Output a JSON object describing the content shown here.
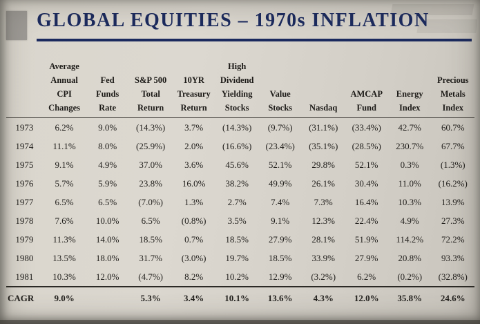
{
  "page": {
    "title": "GLOBAL EQUITIES – 1970s INFLATION"
  },
  "table": {
    "columns": [
      "",
      "Average\nAnnual\nCPI\nChanges",
      "Fed\nFunds\nRate",
      "S&P 500\nTotal\nReturn",
      "10YR\nTreasury\nReturn",
      "High\nDividend\nYielding\nStocks",
      "Value\nStocks",
      "Nasdaq",
      "AMCAP\nFund",
      "Energy\nIndex",
      "Precious\nMetals\nIndex"
    ],
    "rows": [
      {
        "label": "1973",
        "values": [
          "6.2%",
          "9.0%",
          "(14.3%)",
          "3.7%",
          "(14.3%)",
          "(9.7%)",
          "(31.1%)",
          "(33.4%)",
          "42.7%",
          "60.7%"
        ]
      },
      {
        "label": "1974",
        "values": [
          "11.1%",
          "8.0%",
          "(25.9%)",
          "2.0%",
          "(16.6%)",
          "(23.4%)",
          "(35.1%)",
          "(28.5%)",
          "230.7%",
          "67.7%"
        ]
      },
      {
        "label": "1975",
        "values": [
          "9.1%",
          "4.9%",
          "37.0%",
          "3.6%",
          "45.6%",
          "52.1%",
          "29.8%",
          "52.1%",
          "0.3%",
          "(1.3%)"
        ]
      },
      {
        "label": "1976",
        "values": [
          "5.7%",
          "5.9%",
          "23.8%",
          "16.0%",
          "38.2%",
          "49.9%",
          "26.1%",
          "30.4%",
          "11.0%",
          "(16.2%)"
        ]
      },
      {
        "label": "1977",
        "values": [
          "6.5%",
          "6.5%",
          "(7.0%)",
          "1.3%",
          "2.7%",
          "7.4%",
          "7.3%",
          "16.4%",
          "10.3%",
          "13.9%"
        ]
      },
      {
        "label": "1978",
        "values": [
          "7.6%",
          "10.0%",
          "6.5%",
          "(0.8%)",
          "3.5%",
          "9.1%",
          "12.3%",
          "22.4%",
          "4.9%",
          "27.3%"
        ]
      },
      {
        "label": "1979",
        "values": [
          "11.3%",
          "14.0%",
          "18.5%",
          "0.7%",
          "18.5%",
          "27.9%",
          "28.1%",
          "51.9%",
          "114.2%",
          "72.2%"
        ]
      },
      {
        "label": "1980",
        "values": [
          "13.5%",
          "18.0%",
          "31.7%",
          "(3.0%)",
          "19.7%",
          "18.5%",
          "33.9%",
          "27.9%",
          "20.8%",
          "93.3%"
        ]
      },
      {
        "label": "1981",
        "values": [
          "10.3%",
          "12.0%",
          "(4.7%)",
          "8.2%",
          "10.2%",
          "12.9%",
          "(3.2%)",
          "6.2%",
          "(0.2%)",
          "(32.8%)"
        ]
      },
      {
        "label": "CAGR",
        "values": [
          "9.0%",
          "",
          "5.3%",
          "3.4%",
          "10.1%",
          "13.6%",
          "4.3%",
          "12.0%",
          "35.8%",
          "24.6%"
        ]
      }
    ]
  },
  "chart_data": {
    "type": "table",
    "title": "GLOBAL EQUITIES – 1970s INFLATION",
    "categories": [
      "1973",
      "1974",
      "1975",
      "1976",
      "1977",
      "1978",
      "1979",
      "1980",
      "1981",
      "CAGR"
    ],
    "series": [
      {
        "name": "Average Annual CPI Changes",
        "values": [
          6.2,
          11.1,
          9.1,
          5.7,
          6.5,
          7.6,
          11.3,
          13.5,
          10.3,
          9.0
        ]
      },
      {
        "name": "Fed Funds Rate",
        "values": [
          9.0,
          8.0,
          4.9,
          5.9,
          6.5,
          10.0,
          14.0,
          18.0,
          12.0,
          null
        ]
      },
      {
        "name": "S&P 500 Total Return",
        "values": [
          -14.3,
          -25.9,
          37.0,
          23.8,
          -7.0,
          6.5,
          18.5,
          31.7,
          -4.7,
          5.3
        ]
      },
      {
        "name": "10YR Treasury Return",
        "values": [
          3.7,
          2.0,
          3.6,
          16.0,
          1.3,
          -0.8,
          0.7,
          -3.0,
          8.2,
          3.4
        ]
      },
      {
        "name": "High Dividend Yielding Stocks",
        "values": [
          -14.3,
          -16.6,
          45.6,
          38.2,
          2.7,
          3.5,
          18.5,
          19.7,
          10.2,
          10.1
        ]
      },
      {
        "name": "Value Stocks",
        "values": [
          -9.7,
          -23.4,
          52.1,
          49.9,
          7.4,
          9.1,
          27.9,
          18.5,
          12.9,
          13.6
        ]
      },
      {
        "name": "Nasdaq",
        "values": [
          -31.1,
          -35.1,
          29.8,
          26.1,
          7.3,
          12.3,
          28.1,
          33.9,
          -3.2,
          4.3
        ]
      },
      {
        "name": "AMCAP Fund",
        "values": [
          -33.4,
          -28.5,
          52.1,
          30.4,
          16.4,
          22.4,
          51.9,
          27.9,
          6.2,
          12.0
        ]
      },
      {
        "name": "Energy Index",
        "values": [
          42.7,
          230.7,
          0.3,
          11.0,
          10.3,
          4.9,
          114.2,
          20.8,
          -0.2,
          35.8
        ]
      },
      {
        "name": "Precious Metals Index",
        "values": [
          60.7,
          67.7,
          -1.3,
          -16.2,
          13.9,
          27.3,
          72.2,
          93.3,
          -32.8,
          24.6
        ]
      }
    ]
  }
}
